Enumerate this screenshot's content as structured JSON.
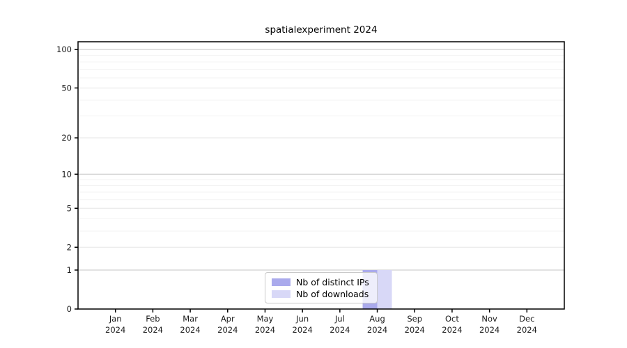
{
  "chart_data": {
    "type": "bar",
    "title": "spatialexperiment 2024",
    "categories": [
      "Jan 2024",
      "Feb 2024",
      "Mar 2024",
      "Apr 2024",
      "May 2024",
      "Jun 2024",
      "Jul 2024",
      "Aug 2024",
      "Sep 2024",
      "Oct 2024",
      "Nov 2024",
      "Dec 2024"
    ],
    "series": [
      {
        "name": "Nb of distinct IPs",
        "color": "#aaaaec",
        "values": [
          0,
          0,
          0,
          0,
          0,
          0,
          0,
          1,
          0,
          0,
          0,
          0
        ]
      },
      {
        "name": "Nb of downloads",
        "color": "#d8d8f7",
        "values": [
          0,
          0,
          0,
          0,
          0,
          0,
          0,
          1,
          0,
          0,
          0,
          0
        ]
      }
    ],
    "yscale": "log1p",
    "ylim": [
      0,
      115
    ],
    "y_ticks": [
      0,
      1,
      2,
      5,
      10,
      20,
      50,
      100
    ],
    "y_minor_ticks": [
      3,
      4,
      6,
      7,
      8,
      9,
      30,
      40,
      60,
      70,
      80,
      90
    ],
    "xlabel": "",
    "ylabel": "",
    "grid": true,
    "legend_position": "lower center"
  },
  "legend": {
    "items": [
      {
        "label": "Nb of distinct IPs",
        "color": "#aaaaec"
      },
      {
        "label": "Nb of downloads",
        "color": "#d8d8f7"
      }
    ]
  },
  "colors": {
    "axis": "#000000",
    "text": "#1a1a1a",
    "grid_major": "#c6c6c6",
    "grid_mid": "#e6e6e6",
    "grid_minor": "#f3f3f3",
    "background": "#ffffff"
  }
}
